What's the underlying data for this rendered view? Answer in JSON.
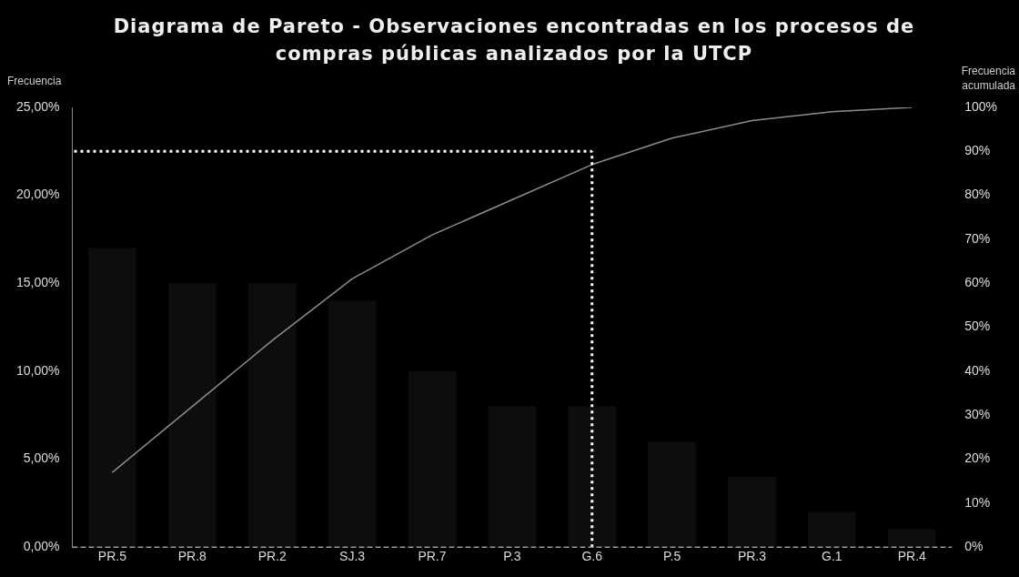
{
  "chart_data": {
    "type": "bar",
    "title": "Diagrama de Pareto - Observaciones encontradas en los procesos de compras públicas analizados por la UTCP",
    "ylabel": "Frecuencia",
    "y2label": "Frecuencia acumulada",
    "categories": [
      "PR.5",
      "PR.8",
      "PR.2",
      "SJ.3",
      "PR.7",
      "P.3",
      "G.6",
      "P.5",
      "PR.3",
      "G.1",
      "PR.4"
    ],
    "series": [
      {
        "color": "#0d0d0d",
        "values": [
          17,
          15,
          15,
          14,
          10,
          8,
          8,
          6,
          4,
          2,
          1
        ]
      },
      {
        "type": "line",
        "axis": "y2",
        "color": "#8c8c8c",
        "values": [
          17,
          32,
          47,
          61,
          71,
          79,
          87,
          93,
          97,
          99,
          100
        ]
      }
    ],
    "ylim": [
      0,
      25
    ],
    "yticks": [
      {
        "value": 0,
        "label": "0,00%"
      },
      {
        "value": 5,
        "label": "5,00%"
      },
      {
        "value": 10,
        "label": "10,00%"
      },
      {
        "value": 15,
        "label": "15,00%"
      },
      {
        "value": 20,
        "label": "20,00%"
      },
      {
        "value": 25,
        "label": "25,00%"
      }
    ],
    "y2lim": [
      0,
      100
    ],
    "y2ticks": [
      {
        "value": 0,
        "label": "0%"
      },
      {
        "value": 10,
        "label": "10%"
      },
      {
        "value": 20,
        "label": "20%"
      },
      {
        "value": 30,
        "label": "30%"
      },
      {
        "value": 40,
        "label": "40%"
      },
      {
        "value": 50,
        "label": "50%"
      },
      {
        "value": 60,
        "label": "60%"
      },
      {
        "value": 70,
        "label": "70%"
      },
      {
        "value": 80,
        "label": "80%"
      },
      {
        "value": 90,
        "label": "90%"
      },
      {
        "value": 100,
        "label": "100%"
      }
    ],
    "ref_lines": [
      {
        "axis": "y2",
        "value": 90,
        "color": "#ffffff",
        "line_style": "dotted"
      },
      {
        "axis": "x",
        "value": "G.6",
        "color": "#ffffff",
        "line_style": "dotted"
      }
    ],
    "grid": false,
    "legend": false,
    "marker": "none",
    "line_style": "solid"
  }
}
